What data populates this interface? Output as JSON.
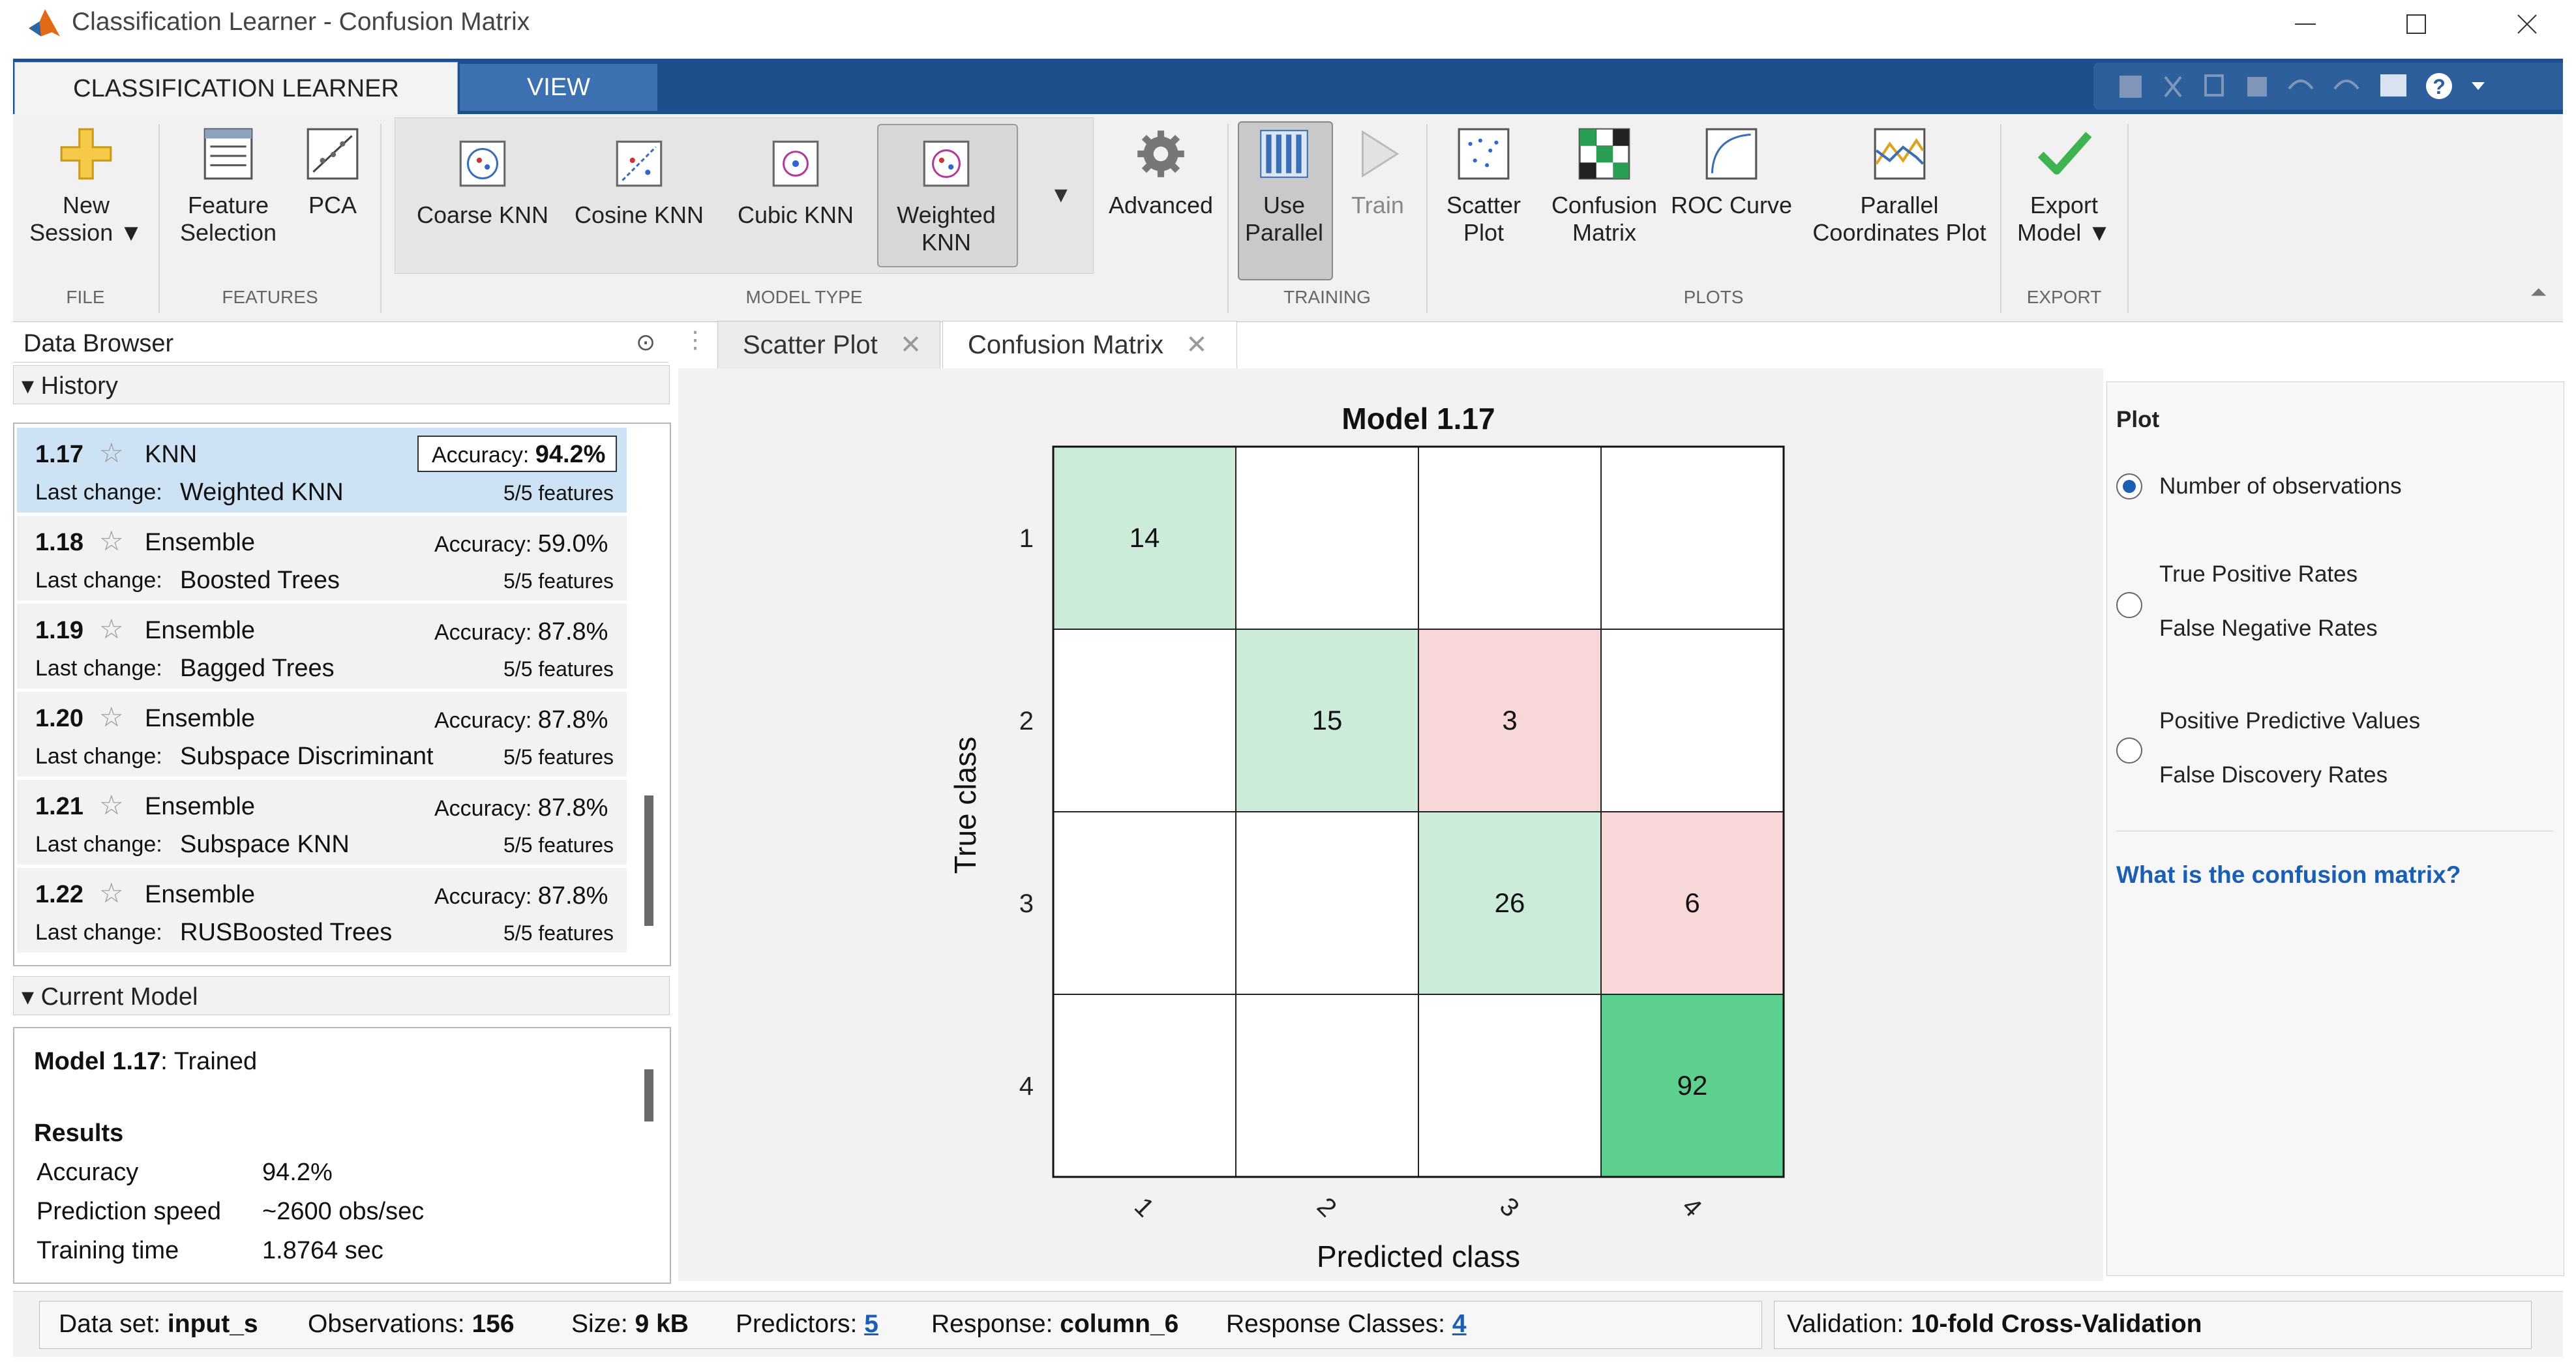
{
  "window": {
    "title": "Classification Learner - Confusion Matrix"
  },
  "ribbon": {
    "tabs": [
      "CLASSIFICATION LEARNER",
      "VIEW"
    ],
    "buttons": {
      "new_session": [
        "New",
        "Session"
      ],
      "feature_selection": [
        "Feature",
        "Selection"
      ],
      "pca": "PCA",
      "coarse_knn": "Coarse KNN",
      "cosine_knn": "Cosine KNN",
      "cubic_knn": "Cubic KNN",
      "weighted_knn": [
        "Weighted",
        "KNN"
      ],
      "advanced": "Advanced",
      "use_parallel": [
        "Use",
        "Parallel"
      ],
      "train": "Train",
      "scatter_plot": [
        "Scatter",
        "Plot"
      ],
      "confusion_matrix": [
        "Confusion",
        "Matrix"
      ],
      "roc_curve": "ROC Curve",
      "parallel_coordinates": [
        "Parallel",
        "Coordinates Plot"
      ],
      "export_model": [
        "Export",
        "Model"
      ]
    },
    "sections": [
      "FILE",
      "FEATURES",
      "MODEL TYPE",
      "TRAINING",
      "PLOTS",
      "EXPORT"
    ]
  },
  "data_browser": {
    "title": "Data Browser",
    "history_label": "History",
    "items": [
      {
        "num": "1.17",
        "type": "KNN",
        "accuracy_label": "Accuracy:",
        "accuracy": "94.2%",
        "last_change_label": "Last change:",
        "last_change": "Weighted KNN",
        "features": "5/5 features",
        "selected": true
      },
      {
        "num": "1.18",
        "type": "Ensemble",
        "accuracy_label": "Accuracy:",
        "accuracy": "59.0%",
        "last_change_label": "Last change:",
        "last_change": "Boosted Trees",
        "features": "5/5 features",
        "selected": false
      },
      {
        "num": "1.19",
        "type": "Ensemble",
        "accuracy_label": "Accuracy:",
        "accuracy": "87.8%",
        "last_change_label": "Last change:",
        "last_change": "Bagged Trees",
        "features": "5/5 features",
        "selected": false
      },
      {
        "num": "1.20",
        "type": "Ensemble",
        "accuracy_label": "Accuracy:",
        "accuracy": "87.8%",
        "last_change_label": "Last change:",
        "last_change": "Subspace Discriminant",
        "features": "5/5 features",
        "selected": false
      },
      {
        "num": "1.21",
        "type": "Ensemble",
        "accuracy_label": "Accuracy:",
        "accuracy": "87.8%",
        "last_change_label": "Last change:",
        "last_change": "Subspace KNN",
        "features": "5/5 features",
        "selected": false
      },
      {
        "num": "1.22",
        "type": "Ensemble",
        "accuracy_label": "Accuracy:",
        "accuracy": "87.8%",
        "last_change_label": "Last change:",
        "last_change": "RUSBoosted Trees",
        "features": "5/5 features",
        "selected": false
      }
    ],
    "current_model_label": "Current Model",
    "current_model": {
      "name": "Model 1.17",
      "status": ": Trained",
      "results_label": "Results",
      "rows": [
        {
          "label": "Accuracy",
          "value": "94.2%"
        },
        {
          "label": "Prediction speed",
          "value": "~2600 obs/sec"
        },
        {
          "label": "Training time",
          "value": "1.8764 sec"
        }
      ]
    }
  },
  "doc_tabs": [
    "Scatter Plot",
    "Confusion Matrix"
  ],
  "confusion": {
    "title": "Model 1.17",
    "ylabel": "True class",
    "xlabel": "Predicted class",
    "row_labels": [
      "1",
      "2",
      "3",
      "4"
    ],
    "col_labels": [
      "1",
      "2",
      "3",
      "4"
    ],
    "cells": [
      [
        "14",
        "",
        "",
        ""
      ],
      [
        "",
        "15",
        "3",
        ""
      ],
      [
        "",
        "",
        "26",
        "6"
      ],
      [
        "",
        "",
        "",
        "92"
      ]
    ]
  },
  "plot_options": {
    "title": "Plot",
    "radio1": "Number of observations",
    "radio2a": "True Positive Rates",
    "radio2b": "False Negative Rates",
    "radio3a": "Positive Predictive Values",
    "radio3b": "False Discovery Rates",
    "selected": 0,
    "help_link": "What is the confusion matrix?"
  },
  "status": {
    "dataset_label": "Data set:",
    "dataset": "input_s",
    "obs_label": "Observations:",
    "obs": "156",
    "size_label": "Size:",
    "size": "9 kB",
    "predictors_label": "Predictors:",
    "predictors": "5",
    "response_label": "Response:",
    "response": "column_6",
    "classes_label": "Response Classes:",
    "classes": "4",
    "validation_label": "Validation:",
    "validation": "10-fold Cross-Validation"
  },
  "colors": {
    "ribbon_blue": "#1c4f8c",
    "diag_light": "#cdebd9",
    "diag_strong": "#5dcf8f",
    "off_diag": "#f7d7d8",
    "link": "#1a5fb4"
  }
}
